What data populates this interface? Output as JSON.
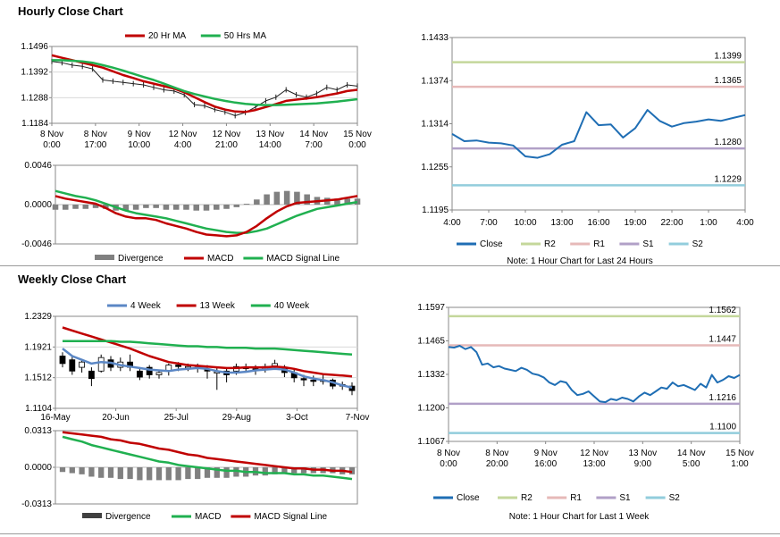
{
  "titles": {
    "hourly": "Hourly Close Chart",
    "weekly": "Weekly Close Chart"
  },
  "colors": {
    "ma20": "#c00000",
    "ma50": "#20b050",
    "price": "#202020",
    "close": "#1f6eb4",
    "r2": "#c4d79b",
    "r1": "#e6b9b8",
    "s1": "#b1a0c7",
    "s2": "#92cddc",
    "divergence": "#808080",
    "wk4": "#5b87c5",
    "wk13": "#c00000",
    "wk40": "#20b050"
  },
  "chart_data": [
    {
      "id": "hourly_price",
      "type": "line",
      "legend": [
        "20 Hr MA",
        "50 Hrs MA"
      ],
      "yticks": [
        "1.1496",
        "1.1392",
        "1.1288",
        "1.1184"
      ],
      "ylim": [
        1.1184,
        1.1496
      ],
      "xticks": [
        [
          "8 Nov",
          "0:00"
        ],
        [
          "8 Nov",
          "17:00"
        ],
        [
          "9 Nov",
          "10:00"
        ],
        [
          "12 Nov",
          "4:00"
        ],
        [
          "12 Nov",
          "21:00"
        ],
        [
          "13 Nov",
          "14:00"
        ],
        [
          "14 Nov",
          "7:00"
        ],
        [
          "15 Nov",
          "0:00"
        ]
      ],
      "series": [
        {
          "name": "Price",
          "values": [
            1.1435,
            1.143,
            1.142,
            1.1415,
            1.1405,
            1.136,
            1.1355,
            1.135,
            1.1345,
            1.134,
            1.133,
            1.132,
            1.1315,
            1.13,
            1.126,
            1.1255,
            1.124,
            1.123,
            1.1215,
            1.1228,
            1.125,
            1.1275,
            1.129,
            1.132,
            1.13,
            1.129,
            1.1305,
            1.133,
            1.132,
            1.134,
            1.1335
          ]
        },
        {
          "name": "20 Hr MA",
          "values": [
            1.146,
            1.145,
            1.144,
            1.143,
            1.142,
            1.141,
            1.1395,
            1.138,
            1.1368,
            1.1355,
            1.1345,
            1.1335,
            1.1325,
            1.131,
            1.129,
            1.127,
            1.1252,
            1.124,
            1.1232,
            1.123,
            1.1238,
            1.125,
            1.1262,
            1.1275,
            1.128,
            1.1285,
            1.129,
            1.1298,
            1.1305,
            1.1315,
            1.132
          ]
        },
        {
          "name": "50 Hrs MA",
          "values": [
            1.144,
            1.144,
            1.1438,
            1.1435,
            1.143,
            1.142,
            1.141,
            1.1398,
            1.1385,
            1.1372,
            1.136,
            1.1345,
            1.133,
            1.1315,
            1.1303,
            1.1293,
            1.1283,
            1.1275,
            1.1268,
            1.1263,
            1.126,
            1.1258,
            1.1258,
            1.1259,
            1.1261,
            1.1263,
            1.1265,
            1.1268,
            1.1272,
            1.1277,
            1.1282
          ]
        }
      ]
    },
    {
      "id": "hourly_macd",
      "type": "line",
      "legend": [
        "Divergence",
        "MACD",
        "MACD Signal Line"
      ],
      "yticks": [
        "0.0046",
        "0.0000",
        "-0.0046"
      ],
      "ylim": [
        -0.0046,
        0.0046
      ],
      "series": [
        {
          "name": "MACD",
          "values": [
            0.001,
            0.0007,
            0.0005,
            0.0003,
            0.0001,
            -0.0004,
            -0.001,
            -0.0014,
            -0.0016,
            -0.0016,
            -0.0018,
            -0.0022,
            -0.0025,
            -0.0028,
            -0.0032,
            -0.0035,
            -0.0036,
            -0.0037,
            -0.0036,
            -0.0032,
            -0.0025,
            -0.0016,
            -0.0008,
            -0.0002,
            0.0002,
            0.0003,
            0.0004,
            0.0005,
            0.0006,
            0.0008,
            0.001
          ]
        },
        {
          "name": "MACD Signal Line",
          "values": [
            0.0016,
            0.0013,
            0.001,
            0.0008,
            0.0005,
            0.0001,
            -0.0003,
            -0.0007,
            -0.001,
            -0.0012,
            -0.0014,
            -0.0016,
            -0.0019,
            -0.0022,
            -0.0025,
            -0.0028,
            -0.003,
            -0.0032,
            -0.0033,
            -0.0033,
            -0.0031,
            -0.0028,
            -0.0023,
            -0.0018,
            -0.0013,
            -0.0009,
            -0.0005,
            -0.0003,
            -0.0001,
            0.0001,
            0.0003
          ]
        },
        {
          "name": "Divergence",
          "values": [
            -0.0006,
            -0.0006,
            -0.0005,
            -0.0005,
            -0.0004,
            -0.0005,
            -0.0007,
            -0.0007,
            -0.0006,
            -0.0004,
            -0.0004,
            -0.0006,
            -0.0006,
            -0.0006,
            -0.0007,
            -0.0007,
            -0.0006,
            -0.0005,
            -0.0003,
            0.0001,
            0.0006,
            0.0012,
            0.0015,
            0.0016,
            0.0015,
            0.0012,
            0.0009,
            0.0008,
            0.0007,
            0.0007,
            0.0007
          ]
        }
      ]
    },
    {
      "id": "hourly_24h",
      "type": "line",
      "legend": [
        "Close",
        "R2",
        "R1",
        "S1",
        "S2"
      ],
      "note": "Note: 1 Hour Chart for Last 24 Hours",
      "yticks": [
        "1.1433",
        "1.1374",
        "1.1314",
        "1.1255",
        "1.1195"
      ],
      "ylim": [
        1.1195,
        1.1433
      ],
      "xticks": [
        "4:00",
        "7:00",
        "10:00",
        "13:00",
        "16:00",
        "19:00",
        "22:00",
        "1:00",
        "4:00"
      ],
      "levels": [
        {
          "name": "R2",
          "label": "1.1399",
          "value": 1.1399
        },
        {
          "name": "R1",
          "label": "1.1365",
          "value": 1.1365
        },
        {
          "name": "S1",
          "label": "1.1280",
          "value": 1.128
        },
        {
          "name": "S2",
          "label": "1.1229",
          "value": 1.1229
        }
      ],
      "close": [
        1.13,
        1.129,
        1.1291,
        1.1288,
        1.1287,
        1.1284,
        1.1269,
        1.1267,
        1.1272,
        1.1285,
        1.129,
        1.133,
        1.1312,
        1.1313,
        1.1295,
        1.1308,
        1.1333,
        1.1318,
        1.131,
        1.1315,
        1.1317,
        1.132,
        1.1318,
        1.1322,
        1.1326
      ]
    },
    {
      "id": "weekly_price",
      "type": "candlestick",
      "legend": [
        "4 Week",
        "13 Week",
        "40 Week"
      ],
      "yticks": [
        "1.2329",
        "1.1921",
        "1.1512",
        "1.1104"
      ],
      "ylim": [
        1.1104,
        1.2329
      ],
      "xticks": [
        "16-May",
        "20-Jun",
        "25-Jul",
        "29-Aug",
        "3-Oct",
        "7-Nov"
      ],
      "candles": [
        [
          1.18,
          1.17,
          1.185,
          1.165
        ],
        [
          1.175,
          1.16,
          1.18,
          1.155
        ],
        [
          1.165,
          1.172,
          1.176,
          1.158
        ],
        [
          1.16,
          1.15,
          1.165,
          1.14
        ],
        [
          1.16,
          1.178,
          1.182,
          1.158
        ],
        [
          1.175,
          1.165,
          1.18,
          1.16
        ],
        [
          1.165,
          1.172,
          1.178,
          1.16
        ],
        [
          1.172,
          1.165,
          1.182,
          1.16
        ],
        [
          1.16,
          1.152,
          1.165,
          1.148
        ],
        [
          1.165,
          1.155,
          1.168,
          1.15
        ],
        [
          1.155,
          1.158,
          1.162,
          1.15
        ],
        [
          1.16,
          1.168,
          1.17,
          1.154
        ],
        [
          1.168,
          1.166,
          1.172,
          1.16
        ],
        [
          1.165,
          1.166,
          1.17,
          1.16
        ],
        [
          1.165,
          1.164,
          1.17,
          1.158
        ],
        [
          1.162,
          1.16,
          1.168,
          1.15
        ],
        [
          1.158,
          1.159,
          1.164,
          1.135
        ],
        [
          1.16,
          1.155,
          1.163,
          1.145
        ],
        [
          1.16,
          1.166,
          1.17,
          1.155
        ],
        [
          1.165,
          1.164,
          1.17,
          1.16
        ],
        [
          1.163,
          1.162,
          1.168,
          1.155
        ],
        [
          1.162,
          1.166,
          1.17,
          1.158
        ],
        [
          1.167,
          1.17,
          1.175,
          1.162
        ],
        [
          1.165,
          1.158,
          1.168,
          1.152
        ],
        [
          1.158,
          1.151,
          1.162,
          1.145
        ],
        [
          1.15,
          1.149,
          1.155,
          1.14
        ],
        [
          1.148,
          1.147,
          1.154,
          1.14
        ],
        [
          1.147,
          1.148,
          1.155,
          1.142
        ],
        [
          1.148,
          1.14,
          1.15,
          1.136
        ],
        [
          1.14,
          1.142,
          1.146,
          1.135
        ],
        [
          1.14,
          1.134,
          1.145,
          1.128
        ]
      ],
      "series": [
        {
          "name": "4 Week",
          "values": [
            1.19,
            1.18,
            1.175,
            1.17,
            1.172,
            1.171,
            1.168,
            1.166,
            1.164,
            1.162,
            1.161,
            1.16,
            1.162,
            1.163,
            1.164,
            1.163,
            1.16,
            1.158,
            1.158,
            1.159,
            1.161,
            1.162,
            1.163,
            1.162,
            1.158,
            1.153,
            1.15,
            1.148,
            1.145,
            1.141,
            1.138
          ]
        },
        {
          "name": "13 Week",
          "values": [
            1.218,
            1.214,
            1.21,
            1.206,
            1.202,
            1.198,
            1.194,
            1.19,
            1.185,
            1.18,
            1.176,
            1.172,
            1.17,
            1.168,
            1.167,
            1.166,
            1.165,
            1.164,
            1.164,
            1.165,
            1.165,
            1.165,
            1.166,
            1.165,
            1.163,
            1.16,
            1.158,
            1.156,
            1.155,
            1.154,
            1.153
          ]
        },
        {
          "name": "40 Week",
          "values": [
            1.2,
            1.2,
            1.2,
            1.2,
            1.2,
            1.2,
            1.199,
            1.199,
            1.198,
            1.197,
            1.196,
            1.195,
            1.194,
            1.193,
            1.193,
            1.192,
            1.192,
            1.191,
            1.191,
            1.191,
            1.19,
            1.19,
            1.19,
            1.189,
            1.188,
            1.187,
            1.186,
            1.185,
            1.184,
            1.183,
            1.182
          ]
        }
      ]
    },
    {
      "id": "weekly_macd",
      "type": "line",
      "legend": [
        "Divergence",
        "MACD",
        "MACD Signal Line"
      ],
      "yticks": [
        "0.0313",
        "0.0000",
        "-0.0313"
      ],
      "ylim": [
        -0.0313,
        0.0313
      ],
      "series": [
        {
          "name": "MACD",
          "values": [
            0.026,
            0.024,
            0.022,
            0.019,
            0.017,
            0.015,
            0.013,
            0.011,
            0.009,
            0.007,
            0.005,
            0.004,
            0.002,
            0.001,
            0.0,
            -0.001,
            -0.002,
            -0.003,
            -0.003,
            -0.004,
            -0.004,
            -0.005,
            -0.005,
            -0.005,
            -0.006,
            -0.006,
            -0.007,
            -0.007,
            -0.008,
            -0.009,
            -0.01
          ]
        },
        {
          "name": "MACD Signal Line",
          "values": [
            0.03,
            0.029,
            0.028,
            0.027,
            0.026,
            0.024,
            0.023,
            0.021,
            0.02,
            0.018,
            0.016,
            0.015,
            0.013,
            0.011,
            0.01,
            0.008,
            0.007,
            0.006,
            0.005,
            0.004,
            0.003,
            0.002,
            0.001,
            0.0,
            -0.001,
            -0.001,
            -0.002,
            -0.002,
            -0.003,
            -0.003,
            -0.004
          ]
        },
        {
          "name": "Divergence",
          "values": [
            -0.004,
            -0.005,
            -0.006,
            -0.008,
            -0.009,
            -0.009,
            -0.01,
            -0.01,
            -0.011,
            -0.011,
            -0.011,
            -0.011,
            -0.011,
            -0.01,
            -0.01,
            -0.009,
            -0.009,
            -0.009,
            -0.008,
            -0.008,
            -0.007,
            -0.007,
            -0.006,
            -0.005,
            -0.005,
            -0.005,
            -0.005,
            -0.005,
            -0.005,
            -0.006,
            -0.006
          ]
        }
      ]
    },
    {
      "id": "weekly_1w",
      "type": "line",
      "legend": [
        "Close",
        "R2",
        "R1",
        "S1",
        "S2"
      ],
      "note": "Note: 1 Hour Chart for Last 1 Week",
      "yticks": [
        "1.1597",
        "1.1465",
        "1.1332",
        "1.1200",
        "1.1067"
      ],
      "ylim": [
        1.1067,
        1.1597
      ],
      "xticks": [
        [
          "8 Nov",
          "0:00"
        ],
        [
          "8 Nov",
          "20:00"
        ],
        [
          "9 Nov",
          "16:00"
        ],
        [
          "12 Nov",
          "13:00"
        ],
        [
          "13 Nov",
          "9:00"
        ],
        [
          "14 Nov",
          "5:00"
        ],
        [
          "15 Nov",
          "1:00"
        ]
      ],
      "levels": [
        {
          "name": "R2",
          "label": "1.1562",
          "value": 1.1562
        },
        {
          "name": "R1",
          "label": "1.1447",
          "value": 1.1447
        },
        {
          "name": "S1",
          "label": "1.1216",
          "value": 1.1216
        },
        {
          "name": "S2",
          "label": "1.1100",
          "value": 1.11
        }
      ],
      "close": [
        1.144,
        1.1438,
        1.1445,
        1.1432,
        1.144,
        1.142,
        1.137,
        1.1375,
        1.136,
        1.1365,
        1.1355,
        1.135,
        1.1345,
        1.1358,
        1.135,
        1.1335,
        1.133,
        1.132,
        1.13,
        1.129,
        1.1305,
        1.13,
        1.127,
        1.125,
        1.1255,
        1.1265,
        1.1245,
        1.1225,
        1.1222,
        1.1235,
        1.123,
        1.124,
        1.1235,
        1.1225,
        1.1245,
        1.126,
        1.125,
        1.1265,
        1.128,
        1.1275,
        1.13,
        1.1285,
        1.129,
        1.128,
        1.127,
        1.1295,
        1.128,
        1.133,
        1.13,
        1.131,
        1.1325,
        1.1318,
        1.133
      ]
    }
  ]
}
